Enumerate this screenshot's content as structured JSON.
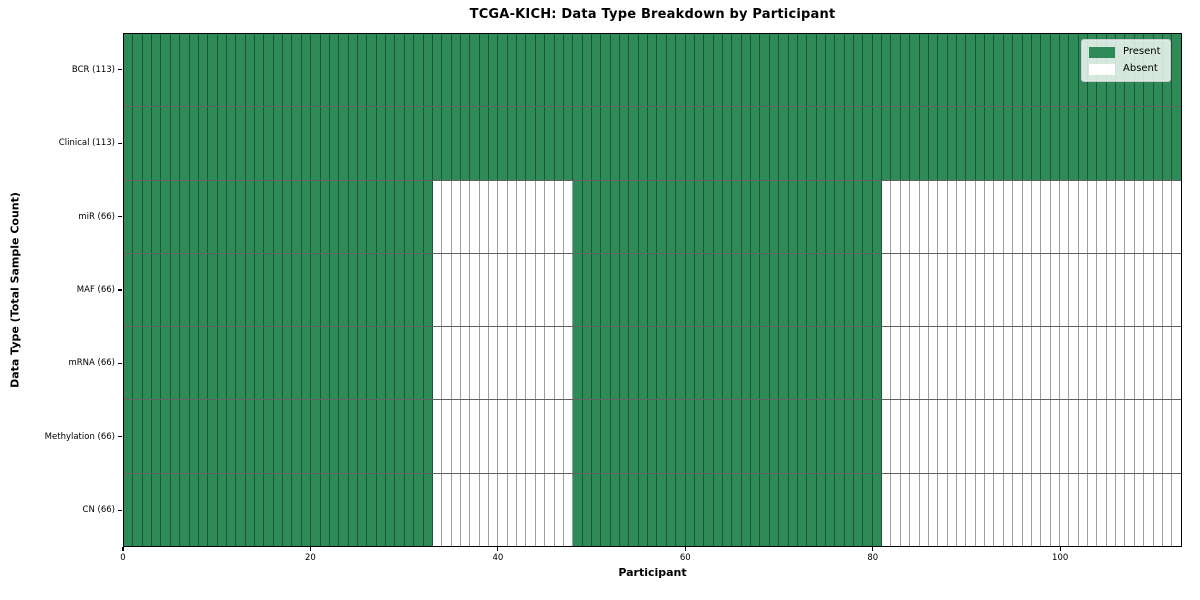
{
  "chart_data": {
    "type": "heatmap",
    "title": "TCGA-KICH: Data Type Breakdown by Participant",
    "xlabel": "Participant",
    "ylabel": "Data Type (Total Sample Count)",
    "x_ticks": [
      0,
      20,
      40,
      60,
      80,
      100
    ],
    "x_range": [
      0,
      113
    ],
    "n_participants": 113,
    "grid": true,
    "legend_position": "upper right",
    "colors": {
      "present": "#2e8b57",
      "absent": "#ffffff"
    },
    "legend": [
      {
        "label": "Present",
        "state": "present",
        "color": "#2e8b57"
      },
      {
        "label": "Absent",
        "state": "absent",
        "color": "#ffffff"
      }
    ],
    "rows": [
      {
        "label": "BCR (113)",
        "data_type": "BCR",
        "sample_count": 113,
        "present_intervals": [
          [
            0,
            113
          ]
        ]
      },
      {
        "label": "Clinical (113)",
        "data_type": "Clinical",
        "sample_count": 113,
        "present_intervals": [
          [
            0,
            113
          ]
        ]
      },
      {
        "label": "miR (66)",
        "data_type": "miR",
        "sample_count": 66,
        "present_intervals": [
          [
            0,
            33
          ],
          [
            48,
            81
          ]
        ]
      },
      {
        "label": "MAF (66)",
        "data_type": "MAF",
        "sample_count": 66,
        "present_intervals": [
          [
            0,
            33
          ],
          [
            48,
            81
          ]
        ]
      },
      {
        "label": "mRNA (66)",
        "data_type": "mRNA",
        "sample_count": 66,
        "present_intervals": [
          [
            0,
            33
          ],
          [
            48,
            81
          ]
        ]
      },
      {
        "label": "Methylation (66)",
        "data_type": "Methylation",
        "sample_count": 66,
        "present_intervals": [
          [
            0,
            33
          ],
          [
            48,
            81
          ]
        ]
      },
      {
        "label": "CN (66)",
        "data_type": "CN",
        "sample_count": 66,
        "present_intervals": [
          [
            0,
            33
          ],
          [
            48,
            81
          ]
        ]
      }
    ]
  }
}
